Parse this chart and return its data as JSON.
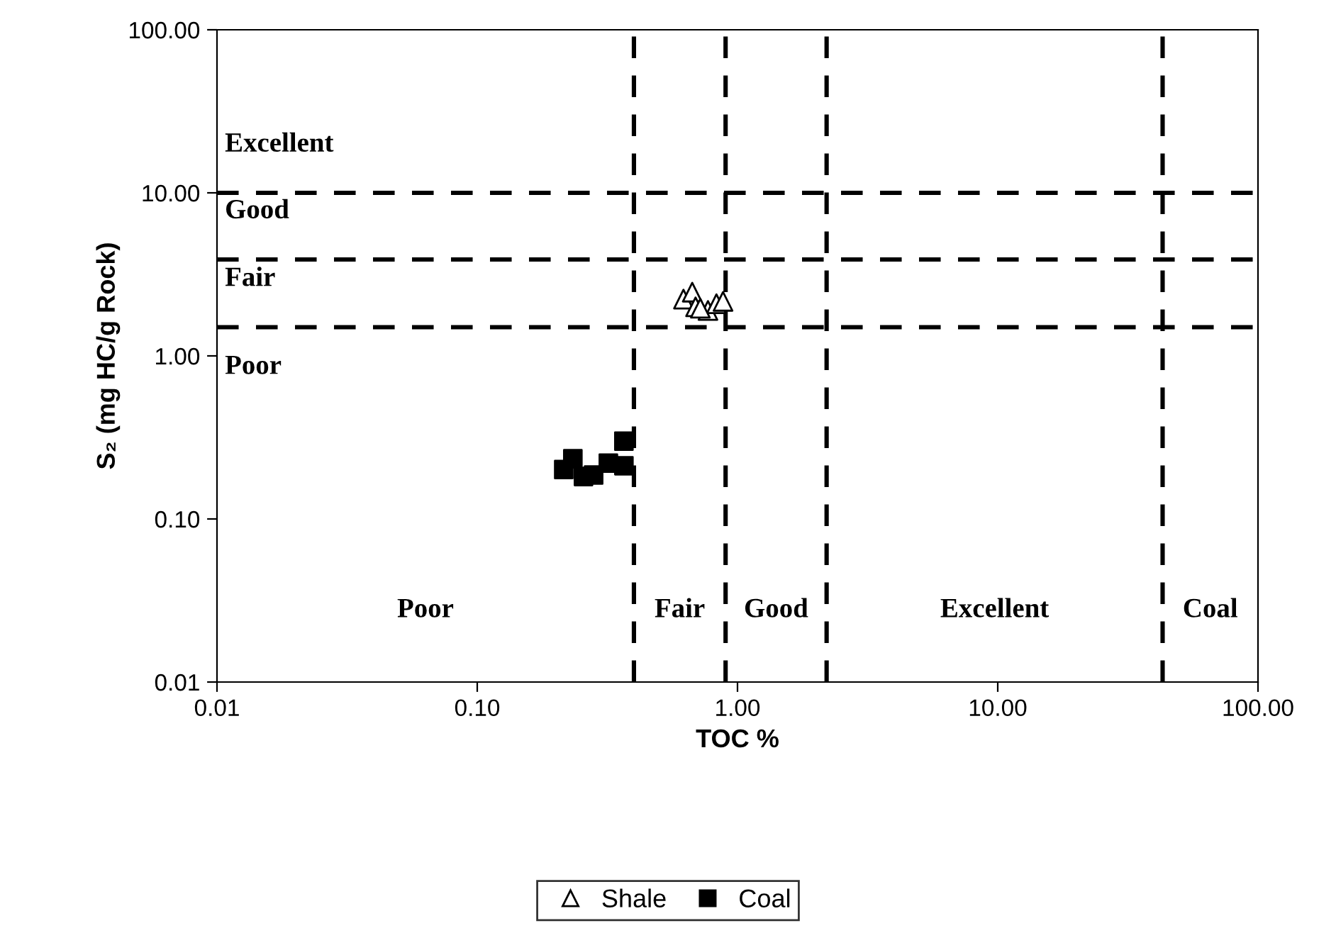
{
  "chart_data": {
    "type": "scatter",
    "xlabel": "TOC %",
    "ylabel": "S₂ (mg HC/g Rock)",
    "log": "xy",
    "xlim": [
      0.01,
      100
    ],
    "ylim": [
      0.01,
      100
    ],
    "xticks": [
      {
        "value": 0.01,
        "label": "0.01"
      },
      {
        "value": 0.1,
        "label": "0.10"
      },
      {
        "value": 1,
        "label": "1.00"
      },
      {
        "value": 10,
        "label": "10.00"
      },
      {
        "value": 100,
        "label": "100.00"
      }
    ],
    "yticks": [
      {
        "value": 0.01,
        "label": "0.01"
      },
      {
        "value": 0.1,
        "label": "0.10"
      },
      {
        "value": 1,
        "label": "1.00"
      },
      {
        "value": 10,
        "label": "10.00"
      },
      {
        "value": 100,
        "label": "100.00"
      }
    ],
    "grid": false,
    "legend": "bottom",
    "series": [
      {
        "name": "Shale",
        "marker": "triangle",
        "color": "#ffffff",
        "x": [
          0.62,
          0.67,
          0.69,
          0.77,
          0.83,
          0.88,
          0.72
        ],
        "values": [
          2.23,
          2.46,
          2.0,
          1.9,
          2.09,
          2.16,
          1.96
        ]
      },
      {
        "name": "Coal",
        "marker": "square",
        "color": "#000000",
        "x": [
          0.215,
          0.233,
          0.256,
          0.28,
          0.319,
          0.366,
          0.366
        ],
        "values": [
          0.201,
          0.234,
          0.182,
          0.186,
          0.22,
          0.3,
          0.212
        ]
      }
    ],
    "ref_lines": [
      {
        "axis": "x",
        "value": 0.4,
        "color": "#000000",
        "line_style": "dashed"
      },
      {
        "axis": "x",
        "value": 0.9,
        "color": "#000000",
        "line_style": "dashed"
      },
      {
        "axis": "x",
        "value": 2.2,
        "color": "#000000",
        "line_style": "dashed"
      },
      {
        "axis": "x",
        "value": 43,
        "color": "#000000",
        "line_style": "dashed"
      },
      {
        "axis": "y",
        "value": 10,
        "color": "#000000",
        "line_style": "dashed"
      },
      {
        "axis": "y",
        "value": 3.9,
        "color": "#000000",
        "line_style": "dashed"
      },
      {
        "axis": "y",
        "value": 1.5,
        "color": "#000000",
        "line_style": "dashed"
      }
    ],
    "annotations": [
      "Excellent",
      "Good",
      "Fair",
      "Poor",
      "Poor",
      "Fair",
      "Good",
      "Excellent",
      "Coal"
    ]
  }
}
